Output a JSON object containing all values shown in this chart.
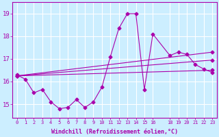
{
  "xlabel": "Windchill (Refroidissement éolien,°C)",
  "bg_color": "#cceeff",
  "grid_color": "#ffffff",
  "line_color": "#aa00aa",
  "x_ticks": [
    0,
    1,
    2,
    3,
    4,
    5,
    6,
    7,
    8,
    9,
    10,
    11,
    12,
    13,
    14,
    15,
    16,
    18,
    19,
    20,
    21,
    22,
    23
  ],
  "x_tick_labels": [
    "0",
    "1",
    "2",
    "3",
    "4",
    "5",
    "6",
    "7",
    "8",
    "9",
    "10",
    "11",
    "12",
    "13",
    "14",
    "15",
    "16",
    "18",
    "19",
    "20",
    "21",
    "22",
    "23"
  ],
  "y_ticks": [
    15,
    16,
    17,
    18,
    19
  ],
  "ylim": [
    14.4,
    19.5
  ],
  "xlim": [
    -0.5,
    23.5
  ],
  "line1_x": [
    0,
    1,
    2,
    3,
    4,
    5,
    6,
    7,
    8,
    9,
    10,
    11,
    12,
    13,
    14,
    15,
    16,
    18,
    19,
    20,
    21,
    22,
    23
  ],
  "line1_y": [
    16.3,
    16.1,
    15.5,
    15.65,
    15.1,
    14.8,
    14.85,
    15.2,
    14.85,
    15.1,
    15.75,
    17.1,
    18.35,
    19.0,
    19.0,
    15.65,
    18.1,
    17.15,
    17.3,
    17.2,
    16.75,
    16.55,
    16.4
  ],
  "line2_x": [
    0,
    23
  ],
  "line2_y": [
    16.25,
    16.5
  ],
  "line3_x": [
    0,
    23
  ],
  "line3_y": [
    16.25,
    16.95
  ],
  "line4_x": [
    0,
    23
  ],
  "line4_y": [
    16.25,
    17.3
  ]
}
